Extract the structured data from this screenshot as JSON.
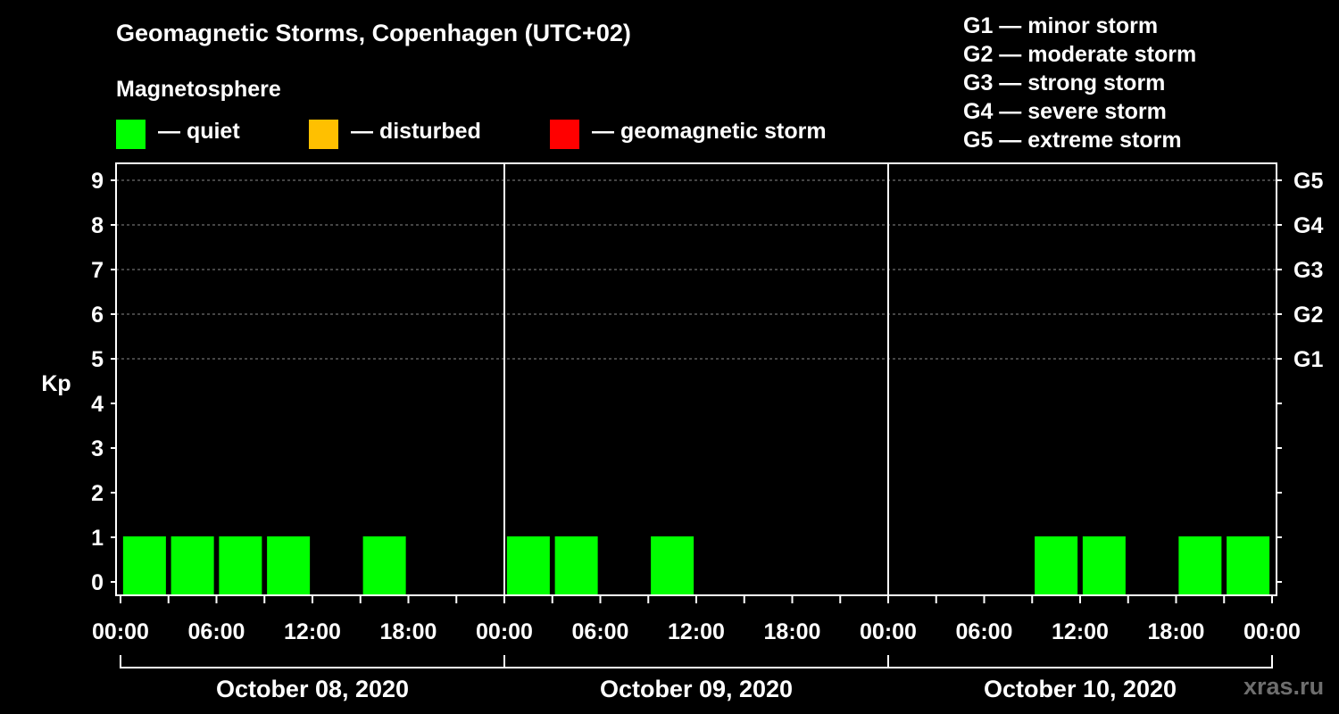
{
  "header": {
    "title": "Geomagnetic Storms, Copenhagen (UTC+02)",
    "subtitle": "Magnetosphere"
  },
  "legend": [
    {
      "label": "— quiet",
      "color": "#00ff00"
    },
    {
      "label": "— disturbed",
      "color": "#ffc000"
    },
    {
      "label": "— geomagnetic storm",
      "color": "#ff0000"
    }
  ],
  "storm_scale": [
    "G1 — minor storm",
    "G2 — moderate storm",
    "G3 — strong storm",
    "G4 — severe storm",
    "G5 — extreme storm"
  ],
  "watermark": "xras.ru",
  "chart_data": {
    "type": "bar",
    "ylabel": "Kp",
    "ylim": [
      -0.3,
      9.4
    ],
    "yticks": [
      "0",
      "1",
      "2",
      "3",
      "4",
      "5",
      "6",
      "7",
      "8",
      "9"
    ],
    "right_axis_labels": [
      {
        "label": "G1",
        "kp": 5
      },
      {
        "label": "G2",
        "kp": 6
      },
      {
        "label": "G3",
        "kp": 7
      },
      {
        "label": "G4",
        "kp": 8
      },
      {
        "label": "G5",
        "kp": 9
      }
    ],
    "grid_kp": [
      5,
      6,
      7,
      8,
      9
    ],
    "xtick_labels": [
      "00:00",
      "06:00",
      "12:00",
      "18:00",
      "00:00",
      "06:00",
      "12:00",
      "18:00",
      "00:00",
      "06:00",
      "12:00",
      "18:00",
      "00:00"
    ],
    "days": [
      "October 08, 2020",
      "October 09, 2020",
      "October 10, 2020"
    ],
    "interval_hours": 3,
    "bar_color": "#00ff00",
    "series": [
      {
        "values": [
          1,
          1,
          1,
          1,
          0,
          1,
          0,
          0,
          1,
          1,
          0,
          1,
          0,
          0,
          0,
          0,
          0,
          0,
          0,
          1,
          1,
          0,
          1,
          1
        ]
      }
    ]
  }
}
